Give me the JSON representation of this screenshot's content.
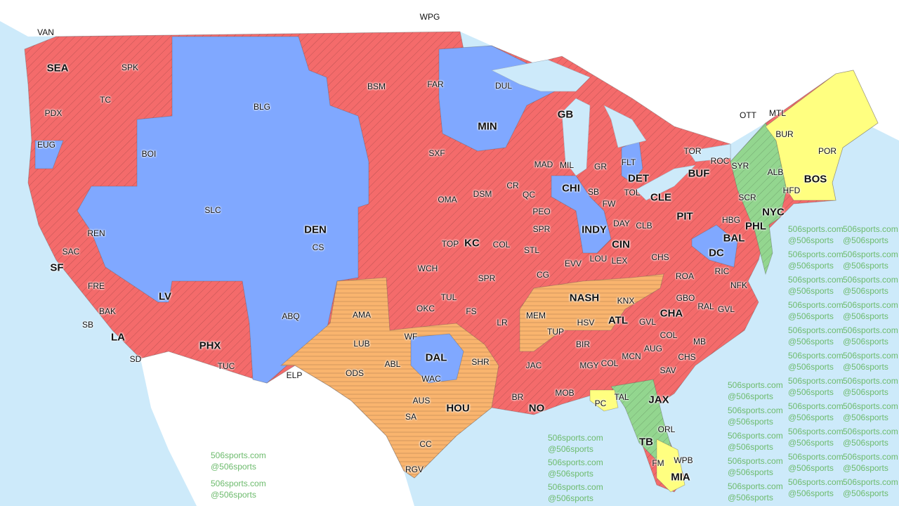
{
  "map": {
    "colors": {
      "water": "#cdeafa",
      "land": "#ffffff",
      "red": "#f46b6b",
      "blue": "#80a8ff",
      "orange": "#f9b46e",
      "green": "#93d68f",
      "yellow": "#ffff80"
    },
    "watermark": {
      "line1": "506sports.com",
      "line2": "@506sports"
    },
    "labels": [
      {
        "t": "VAN"
      },
      {
        "t": "WPG"
      },
      {
        "t": "SEA",
        "b": 1
      },
      {
        "t": "SPK"
      },
      {
        "t": "TC"
      },
      {
        "t": "PDX"
      },
      {
        "t": "EUG"
      },
      {
        "t": "BOI"
      },
      {
        "t": "BLG"
      },
      {
        "t": "BSM"
      },
      {
        "t": "FAR"
      },
      {
        "t": "DUL"
      },
      {
        "t": "MIN",
        "b": 1
      },
      {
        "t": "GB",
        "b": 1
      },
      {
        "t": "OTT"
      },
      {
        "t": "MTL"
      },
      {
        "t": "BUR"
      },
      {
        "t": "POR"
      },
      {
        "t": "TOR"
      },
      {
        "t": "ROC"
      },
      {
        "t": "BUF",
        "b": 1
      },
      {
        "t": "SYR"
      },
      {
        "t": "ALB"
      },
      {
        "t": "BOS",
        "b": 1
      },
      {
        "t": "HFD"
      },
      {
        "t": "SCR"
      },
      {
        "t": "NYC",
        "b": 1
      },
      {
        "t": "PIT",
        "b": 1
      },
      {
        "t": "HBG"
      },
      {
        "t": "PHL",
        "b": 1
      },
      {
        "t": "BAL",
        "b": 1
      },
      {
        "t": "DC",
        "b": 1
      },
      {
        "t": "MAD"
      },
      {
        "t": "MIL"
      },
      {
        "t": "GR"
      },
      {
        "t": "FLT"
      },
      {
        "t": "DET",
        "b": 1
      },
      {
        "t": "SXF"
      },
      {
        "t": "CR"
      },
      {
        "t": "QC"
      },
      {
        "t": "CHI",
        "b": 1
      },
      {
        "t": "SB"
      },
      {
        "t": "TOL"
      },
      {
        "t": "CLE",
        "b": 1
      },
      {
        "t": "FW"
      },
      {
        "t": "OMA"
      },
      {
        "t": "DSM"
      },
      {
        "t": "SLC"
      },
      {
        "t": "REN"
      },
      {
        "t": "DEN",
        "b": 1
      },
      {
        "t": "CS"
      },
      {
        "t": "PEO"
      },
      {
        "t": "SPR"
      },
      {
        "t": "DAY"
      },
      {
        "t": "CLB"
      },
      {
        "t": "INDY",
        "b": 1
      },
      {
        "t": "CIN",
        "b": 1
      },
      {
        "t": "SAC"
      },
      {
        "t": "TOP"
      },
      {
        "t": "KC",
        "b": 1
      },
      {
        "t": "COL"
      },
      {
        "t": "STL"
      },
      {
        "t": "CHS"
      },
      {
        "t": "SF",
        "b": 1
      },
      {
        "t": "WCH"
      },
      {
        "t": "EVV"
      },
      {
        "t": "LOU"
      },
      {
        "t": "LEX"
      },
      {
        "t": "ROA"
      },
      {
        "t": "RIC"
      },
      {
        "t": "FRE"
      },
      {
        "t": "CG"
      },
      {
        "t": "SPR"
      },
      {
        "t": "LV",
        "b": 1
      },
      {
        "t": "NFK"
      },
      {
        "t": "NASH",
        "b": 1
      },
      {
        "t": "KNX"
      },
      {
        "t": "GBO"
      },
      {
        "t": "RAL"
      },
      {
        "t": "GVL"
      },
      {
        "t": "BAK"
      },
      {
        "t": "ABQ"
      },
      {
        "t": "AMA"
      },
      {
        "t": "OKC"
      },
      {
        "t": "TUL"
      },
      {
        "t": "FS"
      },
      {
        "t": "MEM"
      },
      {
        "t": "HSV"
      },
      {
        "t": "CHA",
        "b": 1
      },
      {
        "t": "GVL"
      },
      {
        "t": "SB"
      },
      {
        "t": "LR"
      },
      {
        "t": "TUP"
      },
      {
        "t": "COL"
      },
      {
        "t": "AUG"
      },
      {
        "t": "MB"
      },
      {
        "t": "LA",
        "b": 1
      },
      {
        "t": "ATL",
        "b": 1
      },
      {
        "t": "WF"
      },
      {
        "t": "BIR"
      },
      {
        "t": "MCN"
      },
      {
        "t": "PHX",
        "b": 1
      },
      {
        "t": "LUB"
      },
      {
        "t": "ABL"
      },
      {
        "t": "DAL",
        "b": 1
      },
      {
        "t": "SHR"
      },
      {
        "t": "JAC"
      },
      {
        "t": "MGY"
      },
      {
        "t": "COL"
      },
      {
        "t": "CHS"
      },
      {
        "t": "SD"
      },
      {
        "t": "TUC"
      },
      {
        "t": "ELP"
      },
      {
        "t": "ODS"
      },
      {
        "t": "WAC"
      },
      {
        "t": "SAV"
      },
      {
        "t": "PC"
      },
      {
        "t": "TAL"
      },
      {
        "t": "JAX",
        "b": 1
      },
      {
        "t": "BR"
      },
      {
        "t": "NO",
        "b": 1
      },
      {
        "t": "MOB"
      },
      {
        "t": "HOU",
        "b": 1
      },
      {
        "t": "AUS"
      },
      {
        "t": "SA"
      },
      {
        "t": "ORL"
      },
      {
        "t": "TB",
        "b": 1
      },
      {
        "t": "CC"
      },
      {
        "t": "FM"
      },
      {
        "t": "WPB"
      },
      {
        "t": "MIA",
        "b": 1
      },
      {
        "t": "RGV"
      }
    ]
  }
}
